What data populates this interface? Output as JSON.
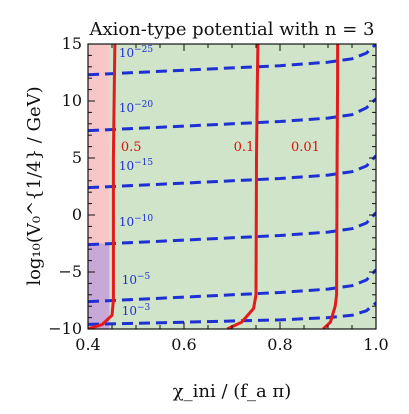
{
  "chart_data": {
    "type": "line",
    "title": "Axion-type potential with n = 3",
    "xlabel": "χ_ini / (f_a π)",
    "ylabel": "log₁₀(V₀^{1/4} / GeV)",
    "xlim": [
      0.4,
      1.0
    ],
    "ylim": [
      -10,
      15
    ],
    "xticks": [
      "0.4",
      "0.6",
      "0.8",
      "1.0"
    ],
    "yticks": [
      "−10",
      "−5",
      "0",
      "5",
      "10",
      "15"
    ],
    "colors": {
      "region_pink": "#f7c6c7",
      "region_purple": "#c7a8d6",
      "region_green": "#cfe4c8",
      "blue_dashed": "#1f2fd6",
      "red_solid": "#e41a1c"
    },
    "regions": [
      {
        "name": "pink",
        "x": [
          0.4,
          0.445
        ],
        "y": [
          -2.5,
          15
        ]
      },
      {
        "name": "purple",
        "x": [
          0.4,
          0.445
        ],
        "y": [
          -10,
          -2.5
        ]
      },
      {
        "name": "green",
        "x": [
          0.445,
          1.0
        ],
        "y": [
          -10,
          15
        ]
      }
    ],
    "blue_series": [
      {
        "label_base": "10",
        "label_exp": "−25",
        "label_x": 0.5,
        "label_y": 14.2,
        "x": [
          0.4,
          0.5,
          0.6,
          0.7,
          0.8,
          0.9,
          0.95,
          0.98,
          1.0
        ],
        "y": [
          12.3,
          12.5,
          12.7,
          12.9,
          13.1,
          13.4,
          13.7,
          14.2,
          15.0
        ]
      },
      {
        "label_base": "10",
        "label_exp": "−20",
        "label_x": 0.5,
        "label_y": 9.4,
        "x": [
          0.4,
          0.5,
          0.6,
          0.7,
          0.8,
          0.9,
          0.95,
          0.98,
          1.0
        ],
        "y": [
          7.4,
          7.6,
          7.8,
          8.0,
          8.2,
          8.5,
          8.8,
          9.4,
          10.2
        ]
      },
      {
        "label_base": "10",
        "label_exp": "−15",
        "label_x": 0.5,
        "label_y": 4.3,
        "x": [
          0.4,
          0.5,
          0.6,
          0.7,
          0.8,
          0.9,
          0.95,
          0.98,
          1.0
        ],
        "y": [
          2.4,
          2.6,
          2.8,
          3.0,
          3.2,
          3.5,
          3.8,
          4.3,
          5.2
        ]
      },
      {
        "label_base": "10",
        "label_exp": "−10",
        "label_x": 0.5,
        "label_y": -0.6,
        "x": [
          0.4,
          0.5,
          0.6,
          0.7,
          0.8,
          0.9,
          0.95,
          0.98,
          1.0
        ],
        "y": [
          -2.6,
          -2.4,
          -2.2,
          -2.0,
          -1.8,
          -1.5,
          -1.2,
          -0.7,
          0.2
        ]
      },
      {
        "label_base": "10",
        "label_exp": "−5",
        "label_x": 0.5,
        "label_y": -5.7,
        "x": [
          0.4,
          0.5,
          0.6,
          0.7,
          0.8,
          0.9,
          0.95,
          0.98,
          1.0
        ],
        "y": [
          -7.6,
          -7.4,
          -7.2,
          -7.0,
          -6.8,
          -6.5,
          -6.2,
          -5.7,
          -4.8
        ]
      },
      {
        "label_base": "10",
        "label_exp": "−3",
        "label_x": 0.5,
        "label_y": -8.4,
        "x": [
          0.4,
          0.5,
          0.6,
          0.7,
          0.8,
          0.9,
          0.95,
          0.98,
          1.0
        ],
        "y": [
          -9.6,
          -9.5,
          -9.4,
          -9.3,
          -9.2,
          -9.0,
          -8.8,
          -8.4,
          -7.7
        ]
      }
    ],
    "red_series": [
      {
        "label": "0.5",
        "label_x": 0.49,
        "label_y": 5.6,
        "x": [
          0.4,
          0.43,
          0.45,
          0.453,
          0.453,
          0.455,
          0.456
        ],
        "y": [
          -10,
          -9.6,
          -8.8,
          -7.5,
          5,
          12,
          15
        ]
      },
      {
        "label": "0.1",
        "label_x": 0.725,
        "label_y": 5.6,
        "x": [
          0.69,
          0.72,
          0.745,
          0.75,
          0.751,
          0.753,
          0.754
        ],
        "y": [
          -10,
          -9.4,
          -8.2,
          -7.0,
          5,
          12,
          15
        ]
      },
      {
        "label": "0.01",
        "label_x": 0.853,
        "label_y": 5.6,
        "x": [
          0.89,
          0.905,
          0.915,
          0.918,
          0.919,
          0.92,
          0.92
        ],
        "y": [
          -10,
          -9.4,
          -8.0,
          -7.0,
          5,
          12,
          15
        ]
      }
    ]
  }
}
